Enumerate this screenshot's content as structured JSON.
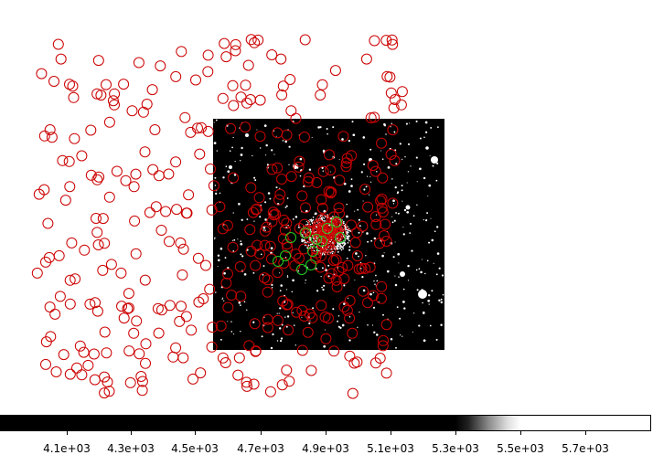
{
  "colorbar": {
    "ticks": [
      "4.1e+03",
      "4.3e+03",
      "4.5e+03",
      "4.7e+03",
      "4.9e+03",
      "5.1e+03",
      "5.3e+03",
      "5.5e+03",
      "5.7e+03"
    ]
  },
  "colors": {
    "background": "#ffffff",
    "image": "#000000",
    "source_region": "#cc0000",
    "highlight_region": "#22cc22"
  },
  "regions": {
    "red_count": 430,
    "green_count": 12
  }
}
